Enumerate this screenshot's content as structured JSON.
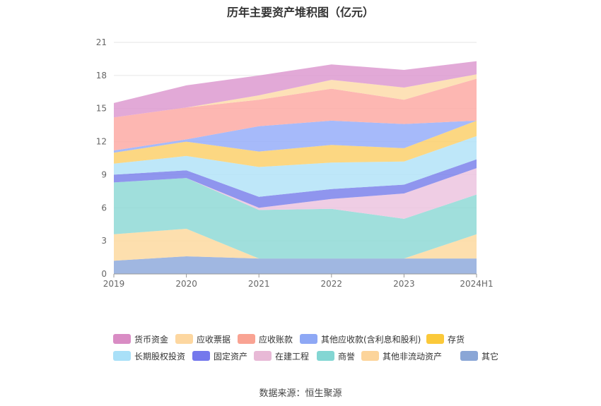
{
  "title": "历年主要资产堆积图（亿元）",
  "source": "数据来源：恒生聚源",
  "chart_data": {
    "type": "area",
    "stacked": true,
    "categories": [
      "2019",
      "2020",
      "2021",
      "2022",
      "2023",
      "2024H1"
    ],
    "yticks": [
      "0",
      "3",
      "6",
      "9",
      "12",
      "15",
      "18",
      "21"
    ],
    "ylim": [
      0,
      21
    ],
    "grid": true,
    "legend_position": "bottom",
    "series": [
      {
        "name": "其它",
        "color": "#8faadc",
        "values": [
          1.2,
          1.6,
          1.4,
          1.4,
          1.4,
          1.4
        ]
      },
      {
        "name": "其他非流动资产",
        "color": "#fdd9a0",
        "values": [
          2.4,
          2.5,
          0.0,
          0.0,
          0.0,
          2.2
        ]
      },
      {
        "name": "商誉",
        "color": "#8fd9d6",
        "values": [
          4.7,
          4.6,
          4.4,
          4.5,
          3.6,
          3.6
        ]
      },
      {
        "name": "在建工程",
        "color": "#ecc4df",
        "values": [
          0.0,
          0.0,
          0.2,
          0.9,
          2.3,
          2.4
        ]
      },
      {
        "name": "固定资产",
        "color": "#7b83eb",
        "values": [
          0.7,
          0.7,
          1.0,
          0.9,
          0.8,
          0.8
        ]
      },
      {
        "name": "长期股权投资",
        "color": "#b3e3f8",
        "values": [
          1.0,
          1.3,
          2.7,
          2.4,
          2.1,
          2.1
        ]
      },
      {
        "name": "存货",
        "color": "#fcd06c",
        "values": [
          1.0,
          1.3,
          1.4,
          1.6,
          1.2,
          1.4
        ]
      },
      {
        "name": "其他应收款(含利息和股利)",
        "color": "#97aef9",
        "values": [
          0.2,
          0.2,
          2.3,
          2.2,
          2.2,
          0.0
        ]
      },
      {
        "name": "应收账款",
        "color": "#fdaaa4",
        "values": [
          3.0,
          2.9,
          2.4,
          2.9,
          2.2,
          3.8
        ]
      },
      {
        "name": "应收票据",
        "color": "#fddcaa",
        "values": [
          0.0,
          0.0,
          0.4,
          0.8,
          1.1,
          0.4
        ]
      },
      {
        "name": "货币资金",
        "color": "#dd9ad0",
        "values": [
          1.3,
          2.0,
          1.8,
          1.4,
          1.6,
          1.2
        ]
      }
    ]
  },
  "legend": [
    {
      "label": "货币资金",
      "color": "#d98cc4"
    },
    {
      "label": "应收票据",
      "color": "#fdd7a0"
    },
    {
      "label": "应收账款",
      "color": "#f9a393"
    },
    {
      "label": "其他应收款(含利息和股利)",
      "color": "#8ea8f5"
    },
    {
      "label": "存货",
      "color": "#fbc93a"
    },
    {
      "label": "长期股权投资",
      "color": "#a9e0f8"
    },
    {
      "label": "固定资产",
      "color": "#7478ec"
    },
    {
      "label": "在建工程",
      "color": "#e8b9d6"
    },
    {
      "label": "商誉",
      "color": "#83d6d3"
    },
    {
      "label": "其他非流动资产",
      "color": "#fcd49a"
    },
    {
      "label": "其它",
      "color": "#8aa6d6"
    }
  ]
}
